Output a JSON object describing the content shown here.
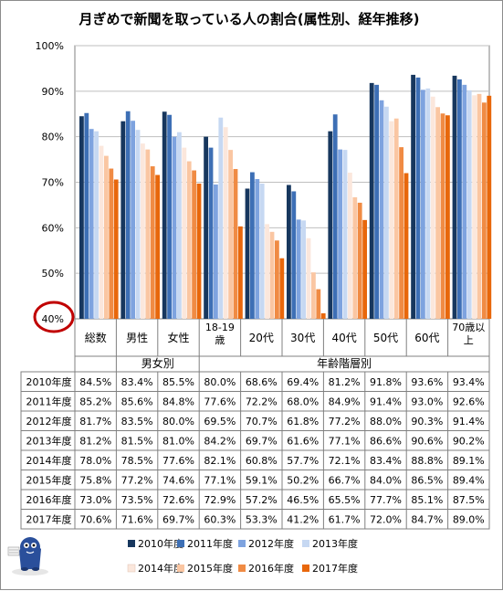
{
  "chart_data": {
    "type": "bar",
    "title": "月ぎめで新聞を取っている人の割合(属性別、経年推移)",
    "ylim": [
      40,
      100
    ],
    "yticks": [
      "40%",
      "50%",
      "60%",
      "70%",
      "80%",
      "90%",
      "100%"
    ],
    "categories": [
      "総数",
      "男性",
      "女性",
      "18-19歳",
      "20代",
      "30代",
      "40代",
      "50代",
      "60代",
      "70歳以上"
    ],
    "groups": [
      {
        "label": "男女別",
        "from": 1,
        "to": 2
      },
      {
        "label": "年齢階層別",
        "from": 3,
        "to": 9
      }
    ],
    "series": [
      {
        "name": "2010年度",
        "color": "#17375e",
        "values": [
          84.5,
          83.4,
          85.5,
          80.0,
          68.6,
          69.4,
          81.2,
          91.8,
          93.6,
          93.4
        ]
      },
      {
        "name": "2011年度",
        "color": "#3d6fb5",
        "values": [
          85.2,
          85.6,
          84.8,
          77.6,
          72.2,
          68.0,
          84.9,
          91.4,
          93.0,
          92.6
        ]
      },
      {
        "name": "2012年度",
        "color": "#7ea3df",
        "values": [
          81.7,
          83.5,
          80.0,
          69.5,
          70.7,
          61.8,
          77.2,
          88.0,
          90.3,
          91.4
        ]
      },
      {
        "name": "2013年度",
        "color": "#c6d8f2",
        "values": [
          81.2,
          81.5,
          81.0,
          84.2,
          69.7,
          61.6,
          77.1,
          86.6,
          90.6,
          90.2
        ]
      },
      {
        "name": "2014年度",
        "color": "#fbe7dc",
        "values": [
          78.0,
          78.5,
          77.6,
          82.1,
          60.8,
          57.7,
          72.1,
          83.4,
          88.8,
          89.1
        ]
      },
      {
        "name": "2015年度",
        "color": "#fac6a2",
        "values": [
          75.8,
          77.2,
          74.6,
          77.1,
          59.1,
          50.2,
          66.7,
          84.0,
          86.5,
          89.4
        ]
      },
      {
        "name": "2016年度",
        "color": "#f08b44",
        "values": [
          73.0,
          73.5,
          72.6,
          72.9,
          57.2,
          46.5,
          65.5,
          77.7,
          85.1,
          87.5
        ]
      },
      {
        "name": "2017年度",
        "color": "#e8670b",
        "values": [
          70.6,
          71.6,
          69.7,
          60.3,
          53.3,
          41.2,
          61.7,
          72.0,
          84.7,
          89.0
        ]
      }
    ]
  }
}
